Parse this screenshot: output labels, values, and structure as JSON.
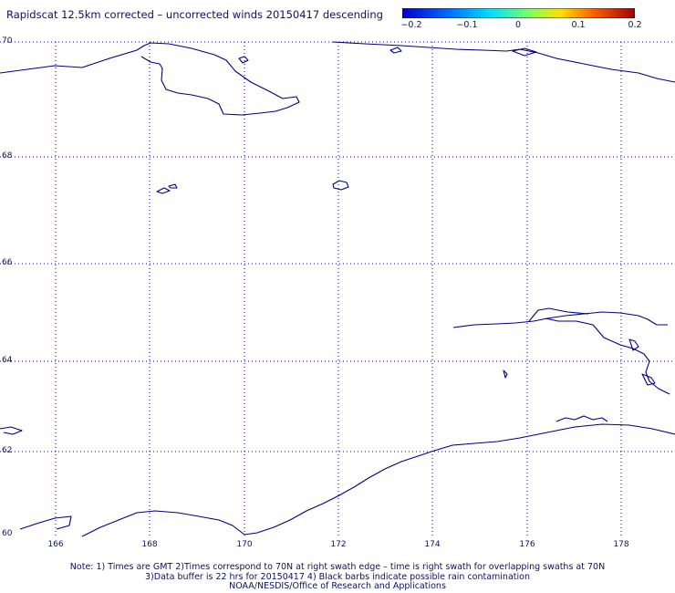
{
  "title": "Rapidscat 12.5km corrected – uncorrected winds 20150417 descending",
  "colorbar": {
    "labels": [
      "−0.2",
      "−0.1",
      "0",
      "0.1",
      "0.2"
    ],
    "colors": [
      "#0000c8",
      "#0060ff",
      "#00e0ff",
      "#80ff60",
      "#ffe000",
      "#ff6000",
      "#a00000"
    ]
  },
  "map": {
    "lat_labels": [
      "70",
      "68",
      "66",
      "64",
      "62",
      "60"
    ],
    "lon_labels": [
      "166",
      "168",
      "170",
      "172",
      "174",
      "176",
      "178"
    ],
    "coast_color": "#000080",
    "grid_color": "#000080"
  },
  "notes": {
    "line1": "Note: 1) Times are GMT 2)Times correspond to 70N at right swath edge – time is right swath for overlapping swaths at 70N",
    "line2": "3)Data buffer is 22 hrs for 20150417 4) Black barbs indicate possible rain contamination",
    "line3": "NOAA/NESDIS/Office of Research and Applications"
  }
}
